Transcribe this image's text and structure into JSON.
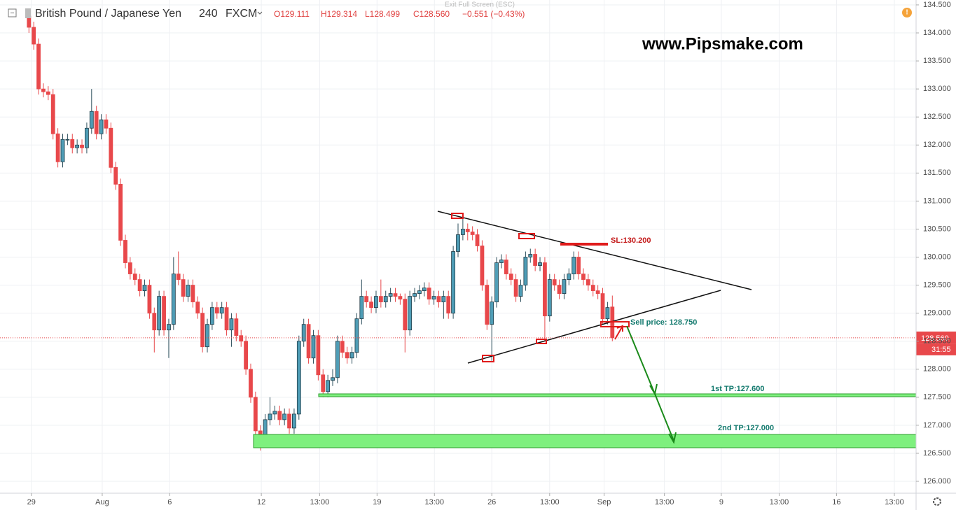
{
  "chart_data": {
    "type": "candlestick",
    "title": "British Pound / Japanese Yen",
    "interval": "240",
    "source": "FXCM",
    "quote": [
      "O129.111",
      "H129.314",
      "L128.499",
      "C128.560",
      "−0.551 (−0.43%)"
    ],
    "exit_hint": "Exit Full Screen (ESC)",
    "watermark": "www.Pipsmake.com",
    "annotations": {
      "stop_loss": "SL:130.200",
      "sell": "Sell price: 128.750",
      "tp1": "1st TP:127.600",
      "tp2": "2nd TP:127.000"
    },
    "last_price_label": "128.560",
    "countdown": "31:55",
    "up_color": "#4f9db6",
    "down_color": "#e8484b",
    "grid": true,
    "xlim": [
      0,
      190
    ],
    "ylim": [
      125.788,
      134.587
    ],
    "xticks": [
      {
        "value": 6.5,
        "label": "29"
      },
      {
        "value": 21.2,
        "label": "Aug"
      },
      {
        "value": 35.2,
        "label": "6"
      },
      {
        "value": 54.2,
        "label": "12"
      },
      {
        "value": 66.3,
        "label": "13:00"
      },
      {
        "value": 78.2,
        "label": "19"
      },
      {
        "value": 90.1,
        "label": "13:00"
      },
      {
        "value": 102,
        "label": "26"
      },
      {
        "value": 114,
        "label": "13:00"
      },
      {
        "value": 125.3,
        "label": "Sep"
      },
      {
        "value": 137.8,
        "label": "13:00"
      },
      {
        "value": 149.6,
        "label": "9"
      },
      {
        "value": 161.6,
        "label": "13:00"
      },
      {
        "value": 173.5,
        "label": "16"
      },
      {
        "value": 185.5,
        "label": "13:00"
      }
    ],
    "yticks": [
      {
        "value": 126.0,
        "label": "126.000"
      },
      {
        "value": 126.5,
        "label": "126.500"
      },
      {
        "value": 127.0,
        "label": "127.000"
      },
      {
        "value": 127.5,
        "label": "127.500"
      },
      {
        "value": 128.0,
        "label": "128.000"
      },
      {
        "value": 128.5,
        "label": "128.500"
      },
      {
        "value": 129.0,
        "label": "129.000"
      },
      {
        "value": 129.5,
        "label": "129.500"
      },
      {
        "value": 130.0,
        "label": "130.000"
      },
      {
        "value": 130.5,
        "label": "130.500"
      },
      {
        "value": 131.0,
        "label": "131.000"
      },
      {
        "value": 131.5,
        "label": "131.500"
      },
      {
        "value": 132.0,
        "label": "132.000"
      },
      {
        "value": 132.5,
        "label": "132.500"
      },
      {
        "value": 133.0,
        "label": "133.000"
      },
      {
        "value": 133.5,
        "label": "133.500"
      },
      {
        "value": 134.0,
        "label": "134.000"
      },
      {
        "value": 134.5,
        "label": "134.500"
      }
    ],
    "x": [
      6,
      7,
      8,
      9,
      10,
      11,
      12,
      13,
      14,
      15,
      16,
      17,
      18,
      19,
      20,
      21,
      22,
      23,
      24,
      25,
      26,
      27,
      28,
      29,
      30,
      31,
      32,
      33,
      34,
      35,
      36,
      37,
      38,
      39,
      40,
      41,
      42,
      43,
      44,
      45,
      46,
      47,
      48,
      49,
      50,
      51,
      52,
      53,
      54,
      55,
      56,
      57,
      58,
      59,
      60,
      61,
      62,
      63,
      64,
      65,
      66,
      67,
      68,
      69,
      70,
      71,
      72,
      73,
      74,
      75,
      76,
      77,
      78,
      79,
      80,
      81,
      82,
      83,
      84,
      85,
      86,
      87,
      88,
      89,
      90,
      91,
      92,
      93,
      94,
      95,
      96,
      97,
      98,
      99,
      100,
      101,
      102,
      103,
      104,
      105,
      106,
      107,
      108,
      109,
      110,
      111,
      112,
      113,
      114,
      115,
      116,
      117,
      118,
      119,
      120,
      121,
      122,
      123,
      124,
      125,
      126,
      127
    ],
    "open": [
      134.3,
      134.1,
      133.8,
      133.0,
      132.95,
      132.9,
      132.2,
      131.7,
      132.1,
      132.1,
      131.95,
      132.0,
      131.95,
      132.3,
      132.6,
      132.2,
      132.45,
      132.3,
      131.6,
      131.3,
      130.3,
      129.9,
      129.7,
      129.6,
      129.4,
      129.5,
      129.0,
      128.7,
      129.3,
      128.7,
      128.8,
      129.7,
      129.6,
      129.3,
      129.5,
      129.2,
      129.0,
      128.4,
      128.8,
      129.1,
      129.0,
      129.1,
      128.7,
      128.9,
      128.6,
      128.5,
      128.0,
      127.5,
      126.9,
      126.8,
      127.1,
      127.2,
      127.25,
      127.1,
      127.2,
      126.95,
      127.2,
      128.5,
      128.8,
      128.2,
      128.6,
      127.9,
      127.6,
      127.8,
      127.85,
      128.5,
      128.3,
      128.2,
      128.3,
      128.9,
      129.3,
      129.2,
      129.1,
      129.3,
      129.2,
      129.3,
      129.35,
      129.3,
      129.25,
      128.7,
      129.3,
      129.35,
      129.4,
      129.45,
      129.25,
      129.3,
      129.2,
      129.3,
      129.0,
      130.1,
      130.4,
      130.5,
      130.45,
      130.4,
      130.2,
      129.5,
      128.8,
      129.2,
      129.9,
      129.95,
      129.7,
      129.6,
      129.3,
      129.5,
      130.0,
      130.05,
      129.85,
      129.9,
      128.95,
      129.6,
      129.5,
      129.35,
      129.6,
      129.7,
      130.0,
      129.7,
      129.6,
      129.5,
      129.4,
      129.35,
      128.9,
      129.111
    ],
    "high": [
      134.4,
      134.2,
      133.9,
      133.1,
      133.05,
      133.0,
      132.3,
      132.2,
      132.2,
      132.2,
      132.1,
      132.1,
      132.4,
      133.0,
      132.7,
      132.55,
      132.55,
      132.4,
      131.7,
      131.4,
      130.4,
      130.0,
      129.8,
      129.7,
      129.6,
      129.6,
      129.1,
      129.4,
      129.4,
      128.9,
      130.0,
      130.1,
      129.7,
      129.6,
      129.6,
      129.3,
      129.1,
      128.9,
      129.2,
      129.2,
      129.2,
      129.2,
      129.0,
      129.0,
      128.7,
      128.6,
      128.1,
      127.6,
      127.0,
      127.2,
      127.5,
      127.35,
      127.35,
      127.3,
      127.3,
      127.3,
      128.6,
      128.9,
      128.9,
      128.7,
      128.7,
      128.0,
      127.9,
      128.0,
      128.6,
      128.6,
      128.4,
      128.4,
      129.0,
      129.6,
      129.4,
      129.3,
      129.4,
      129.6,
      129.4,
      129.45,
      129.45,
      129.35,
      129.35,
      129.4,
      129.45,
      129.5,
      129.55,
      129.55,
      129.4,
      129.4,
      129.4,
      129.4,
      130.2,
      130.6,
      130.7,
      130.6,
      130.55,
      130.5,
      130.3,
      129.6,
      129.3,
      130.0,
      130.05,
      130.05,
      129.8,
      129.7,
      129.6,
      130.1,
      130.15,
      130.15,
      130.0,
      130.0,
      129.7,
      129.7,
      129.6,
      129.7,
      129.8,
      130.1,
      130.1,
      129.8,
      129.7,
      129.6,
      129.5,
      129.45,
      129.2,
      129.314
    ],
    "low": [
      134.0,
      133.7,
      132.9,
      132.85,
      132.8,
      132.1,
      131.6,
      131.6,
      132.0,
      131.85,
      131.85,
      131.85,
      131.85,
      132.2,
      132.1,
      132.1,
      132.2,
      131.5,
      131.2,
      130.2,
      129.8,
      129.6,
      129.5,
      129.3,
      129.3,
      128.9,
      128.3,
      128.6,
      128.6,
      128.2,
      128.7,
      129.5,
      129.2,
      129.2,
      129.1,
      128.9,
      128.3,
      128.3,
      128.7,
      128.9,
      128.9,
      128.6,
      128.4,
      128.5,
      128.4,
      127.9,
      127.4,
      126.8,
      126.55,
      126.7,
      127.0,
      127.1,
      127.0,
      127.0,
      126.85,
      126.85,
      127.1,
      128.4,
      128.1,
      128.1,
      127.8,
      127.5,
      127.5,
      127.7,
      127.75,
      128.2,
      128.1,
      128.1,
      128.2,
      128.8,
      129.1,
      129.0,
      129.0,
      129.1,
      129.1,
      129.2,
      129.2,
      129.15,
      128.3,
      128.6,
      129.2,
      129.25,
      129.3,
      129.15,
      129.15,
      129.1,
      128.9,
      128.9,
      128.9,
      130.0,
      130.3,
      130.3,
      130.3,
      130.1,
      129.4,
      128.7,
      128.15,
      129.1,
      129.8,
      129.6,
      129.5,
      129.2,
      129.2,
      129.4,
      129.9,
      129.75,
      129.75,
      128.5,
      128.85,
      129.4,
      129.25,
      129.25,
      129.5,
      129.6,
      129.6,
      129.5,
      129.4,
      129.3,
      129.25,
      128.8,
      128.8,
      128.499
    ],
    "close": [
      134.1,
      133.8,
      133.0,
      132.95,
      132.9,
      132.2,
      131.7,
      132.1,
      132.1,
      131.95,
      132.0,
      131.95,
      132.3,
      132.6,
      132.2,
      132.45,
      132.3,
      131.6,
      131.3,
      130.3,
      129.9,
      129.7,
      129.6,
      129.4,
      129.5,
      129.0,
      128.7,
      129.3,
      128.7,
      128.8,
      129.7,
      129.6,
      129.3,
      129.5,
      129.2,
      129.0,
      128.4,
      128.8,
      129.1,
      129.0,
      129.1,
      128.7,
      128.9,
      128.6,
      128.5,
      128.0,
      127.5,
      126.9,
      126.8,
      127.1,
      127.2,
      127.25,
      127.1,
      127.2,
      126.95,
      127.2,
      128.5,
      128.8,
      128.2,
      128.6,
      127.9,
      127.6,
      127.8,
      127.85,
      128.5,
      128.3,
      128.2,
      128.3,
      128.9,
      129.3,
      129.2,
      129.1,
      129.3,
      129.2,
      129.3,
      129.35,
      129.3,
      129.25,
      128.7,
      129.3,
      129.35,
      129.4,
      129.45,
      129.25,
      129.3,
      129.2,
      129.3,
      129.0,
      130.1,
      130.4,
      130.5,
      130.45,
      130.4,
      130.2,
      129.5,
      128.8,
      129.2,
      129.9,
      129.95,
      129.7,
      129.6,
      129.3,
      129.5,
      130.0,
      130.05,
      129.85,
      129.9,
      128.95,
      129.6,
      129.5,
      129.35,
      129.6,
      129.7,
      130.0,
      129.7,
      129.6,
      129.5,
      129.4,
      129.35,
      128.9,
      129.1,
      128.56
    ]
  }
}
